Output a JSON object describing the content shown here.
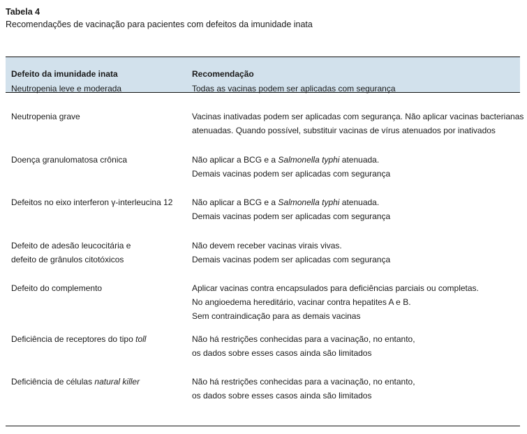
{
  "title": "Tabela 4",
  "subtitle": "Recomendações de vacinação para pacientes com defeitos da imunidade inata",
  "header": {
    "col1": "Defeito da imunidade inata",
    "col2": "Recomendação"
  },
  "rows": [
    {
      "defect": [
        [
          {
            "t": "Neutropenia leve e moderada"
          }
        ]
      ],
      "rec": [
        [
          {
            "t": "Todas as vacinas podem ser aplicadas com segurança"
          }
        ]
      ]
    },
    {
      "defect": [
        [
          {
            "t": "Neutropenia grave"
          }
        ]
      ],
      "rec": [
        [
          {
            "t": "Vacinas inativadas podem ser aplicadas com segurança. Não aplicar vacinas bacterianas"
          }
        ],
        [
          {
            "t": "atenuadas. Quando possível, substituir vacinas de vírus atenuados por inativados"
          }
        ]
      ]
    },
    {
      "defect": [
        [
          {
            "t": "Doença granulomatosa crônica"
          }
        ]
      ],
      "rec": [
        [
          {
            "t": "Não aplicar a BCG e a "
          },
          {
            "t": "Salmonella typhi",
            "i": true
          },
          {
            "t": " atenuada."
          }
        ],
        [
          {
            "t": "Demais vacinas podem ser aplicadas com segurança"
          }
        ]
      ]
    },
    {
      "defect": [
        [
          {
            "t": "Defeitos no eixo interferon γ-interleucina 12"
          }
        ]
      ],
      "rec": [
        [
          {
            "t": "Não aplicar a BCG e a "
          },
          {
            "t": "Salmonella typhi",
            "i": true
          },
          {
            "t": " atenuada."
          }
        ],
        [
          {
            "t": "Demais vacinas podem ser aplicadas com segurança"
          }
        ]
      ]
    },
    {
      "defect": [
        [
          {
            "t": "Defeito de adesão leucocitária e"
          }
        ],
        [
          {
            "t": "defeito de grânulos citotóxicos"
          }
        ]
      ],
      "rec": [
        [
          {
            "t": "Não devem receber vacinas virais vivas."
          }
        ],
        [
          {
            "t": "Demais vacinas podem ser aplicadas com segurança"
          }
        ]
      ]
    },
    {
      "defect": [
        [
          {
            "t": "Defeito do complemento"
          }
        ]
      ],
      "rec": [
        [
          {
            "t": "Aplicar vacinas contra encapsulados para deficiências parciais ou completas."
          }
        ],
        [
          {
            "t": "No angioedema hereditário, vacinar contra hepatites A e B."
          }
        ],
        [
          {
            "t": "Sem contraindicação para as demais vacinas"
          }
        ]
      ]
    },
    {
      "defect": [
        [
          {
            "t": "Deficiência de receptores do tipo "
          },
          {
            "t": "toll",
            "i": true
          }
        ]
      ],
      "rec": [
        [
          {
            "t": "Não há restrições conhecidas para a vacinação, no entanto,"
          }
        ],
        [
          {
            "t": "os dados sobre esses casos ainda são limitados"
          }
        ]
      ]
    },
    {
      "defect": [
        [
          {
            "t": "Deficiência de células "
          },
          {
            "t": "natural killer",
            "i": true
          }
        ]
      ],
      "rec": [
        [
          {
            "t": "Não há restrições conhecidas para a vacinação, no entanto,"
          }
        ],
        [
          {
            "t": "os dados sobre esses casos ainda são limitados"
          }
        ]
      ]
    }
  ],
  "colors": {
    "header_bg": "#d2e1ec",
    "rule": "#111111"
  }
}
